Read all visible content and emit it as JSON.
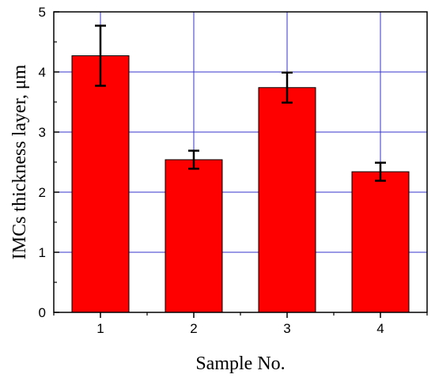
{
  "chart_data": {
    "type": "bar",
    "categories": [
      "1",
      "2",
      "3",
      "4"
    ],
    "values": [
      4.27,
      2.54,
      3.74,
      2.34
    ],
    "errors": [
      0.5,
      0.15,
      0.25,
      0.15
    ],
    "xlabel": "Sample No.",
    "ylabel": "IMCs thickness layer, μm",
    "ylim": [
      0,
      5
    ],
    "yticks": [
      0,
      1,
      2,
      3,
      4,
      5
    ],
    "grid": true,
    "bar_color": "#ff0000",
    "grid_color": "#3333cc"
  }
}
